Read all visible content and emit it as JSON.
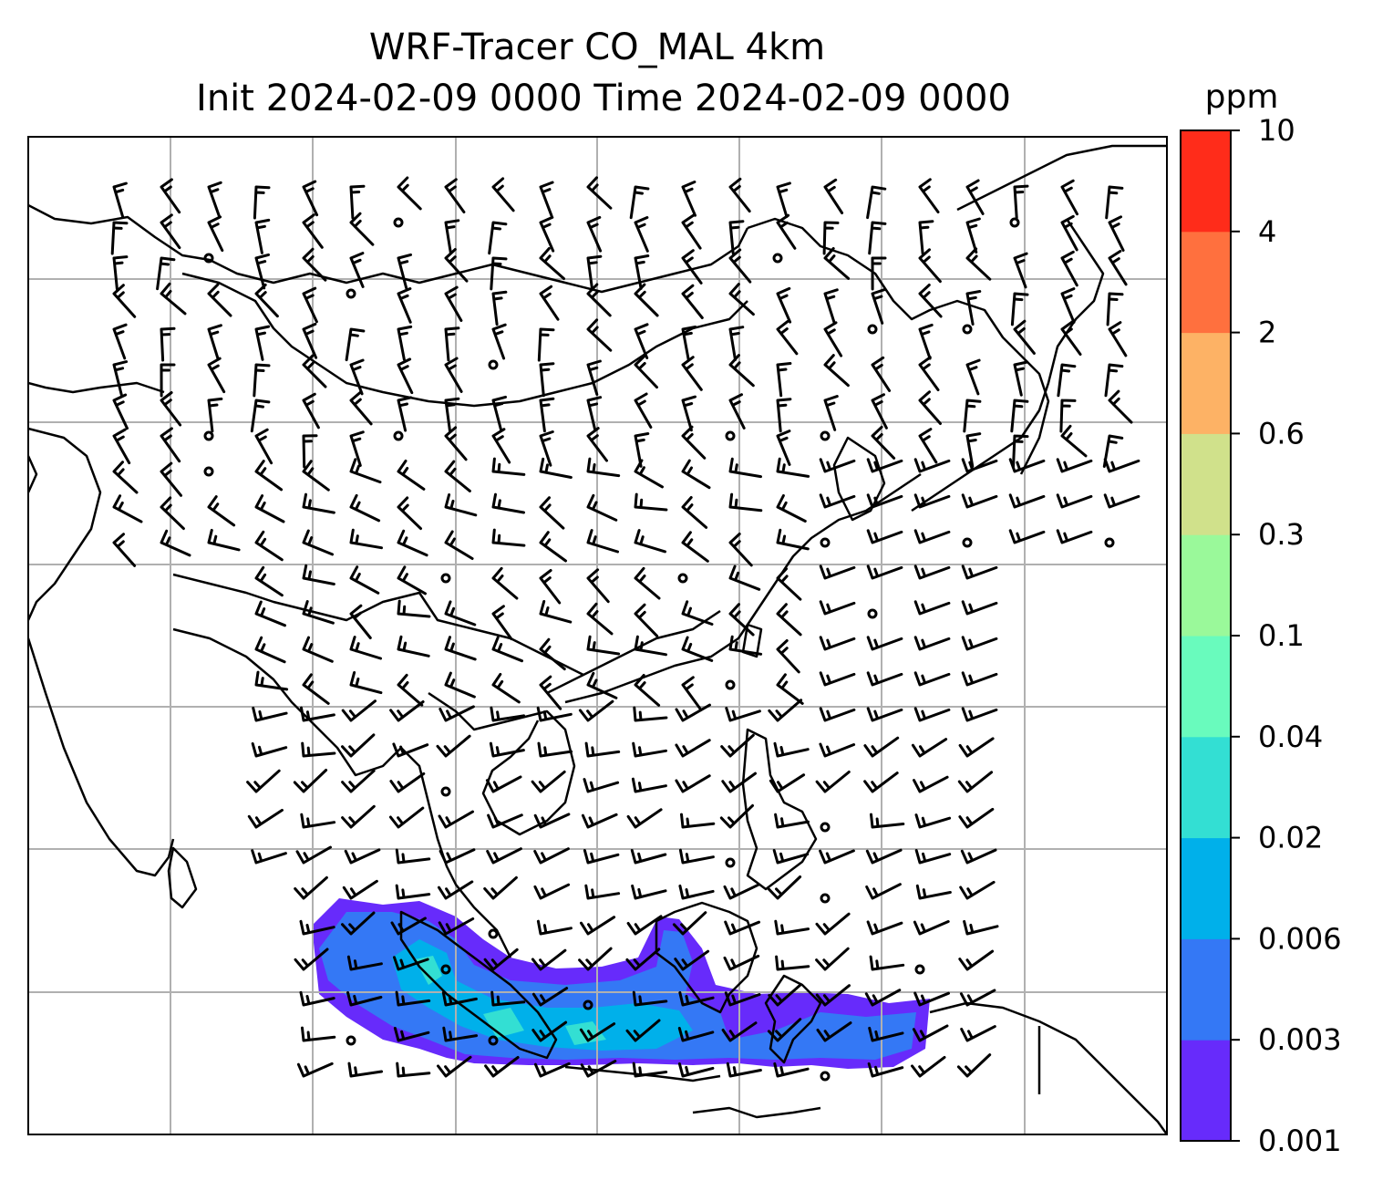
{
  "title": {
    "line1": "WRF-Tracer CO_MAL 4km",
    "line2": "Init 2024-02-09 0000 Time 2024-02-09 0000"
  },
  "colorbar": {
    "unit": "ppm",
    "levels": [
      "0.001",
      "0.003",
      "0.006",
      "0.02",
      "0.04",
      "0.1",
      "0.3",
      "0.6",
      "2",
      "4",
      "10"
    ],
    "colors": [
      "#672bfb",
      "#3478f5",
      "#00b0ea",
      "#33dfd3",
      "#69fbbd",
      "#9af99a",
      "#d0e18b",
      "#fdb265",
      "#ff703e",
      "#ff2c1a"
    ]
  },
  "map": {
    "gridlines": true,
    "layers": [
      "coastlines",
      "country-borders",
      "wind-barbs",
      "tracer-concentration"
    ],
    "plume_colors": {
      "low": "#672bfb",
      "mid": "#3478f5",
      "high": "#00b0ea",
      "peak": "#33dfd3"
    }
  }
}
